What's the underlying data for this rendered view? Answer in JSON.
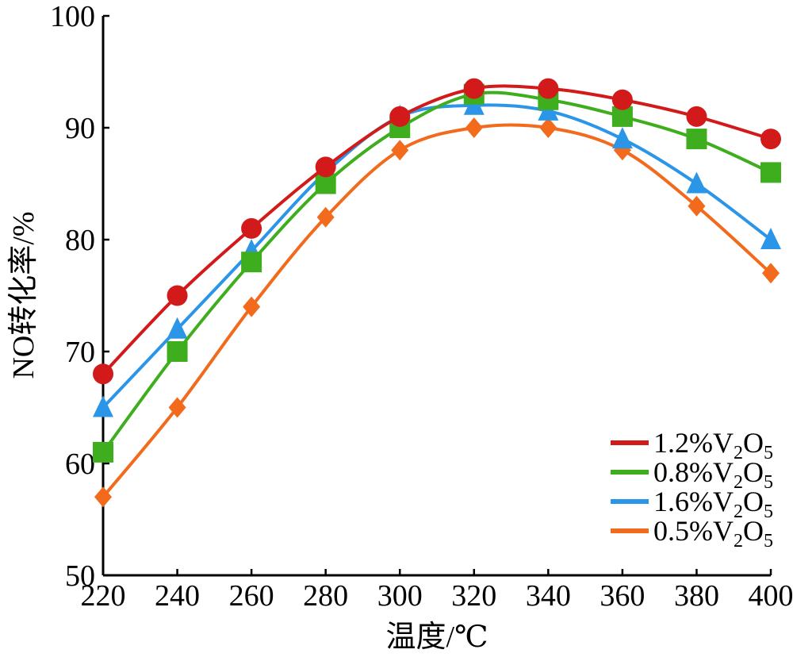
{
  "chart_data": {
    "type": "line",
    "title": "",
    "xlabel": "温度/℃",
    "ylabel": "NO转化率/%",
    "x": [
      220,
      240,
      260,
      280,
      300,
      320,
      340,
      360,
      380,
      400
    ],
    "xlim": [
      220,
      400
    ],
    "ylim": [
      50,
      100
    ],
    "x_ticks": [
      "220",
      "240",
      "260",
      "280",
      "300",
      "320",
      "340",
      "360",
      "380",
      "400"
    ],
    "y_ticks": [
      "50",
      "60",
      "70",
      "80",
      "90",
      "100"
    ],
    "grid": false,
    "legend_position": "bottom-right",
    "series": [
      {
        "name": "1.2%V2O5",
        "legend": {
          "prefix": "1.2%V",
          "sub1": "2",
          "mid": "O",
          "sub2": "5"
        },
        "color": "#d21a1a",
        "marker": "circle",
        "values": [
          68,
          75,
          81,
          86.5,
          91,
          93.5,
          93.5,
          92.5,
          91,
          89
        ]
      },
      {
        "name": "0.8%V2O5",
        "legend": {
          "prefix": "0.8%V",
          "sub1": "2",
          "mid": "O",
          "sub2": "5"
        },
        "color": "#3fae1e",
        "marker": "square",
        "values": [
          61,
          70,
          78,
          85,
          90,
          93,
          92.5,
          91,
          89,
          86
        ]
      },
      {
        "name": "1.6%V2O5",
        "legend": {
          "prefix": "1.6%V",
          "sub1": "2",
          "mid": "O",
          "sub2": "5"
        },
        "color": "#2b95e8",
        "marker": "triangle",
        "values": [
          65,
          72,
          79,
          86,
          91,
          92,
          91.5,
          89,
          85,
          80
        ]
      },
      {
        "name": "0.5%V2O5",
        "legend": {
          "prefix": "0.5%V",
          "sub1": "2",
          "mid": "O",
          "sub2": "5"
        },
        "color": "#f26b1d",
        "marker": "diamond",
        "values": [
          57,
          65,
          74,
          82,
          88,
          90,
          90,
          88,
          83,
          77
        ]
      }
    ]
  }
}
